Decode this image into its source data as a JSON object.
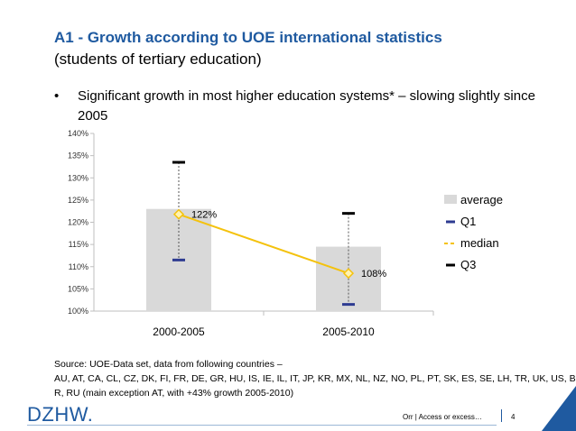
{
  "slide": {
    "title": "A1 - Growth according to UOE international statistics",
    "subtitle": "(students of tertiary education)",
    "bullet_marker": "•",
    "bullet_text": "Significant growth in most higher education systems* – slowing slightly since 2005",
    "source_line1": "Source: UOE-Data set, data from following countries –",
    "source_line2": "AU, AT, CA, CL, CZ, DK, FI, FR, DE, GR, HU, IS, IE, IL, IT, JP, KR, MX, NL, NZ, NO, PL, PT, SK, ES, SE, LH, TR, UK, US, B",
    "source_line3": "R, RU (main exception AT, with +43% growth 2005-2010)",
    "logo": "DZHW.",
    "footer_text": "Orr | Access or excess…",
    "page_number": "4"
  },
  "chart_data": {
    "type": "bar",
    "categories": [
      "2000-2005",
      "2005-2010"
    ],
    "yticks": [
      "100%",
      "105%",
      "110%",
      "115%",
      "120%",
      "125%",
      "130%",
      "135%",
      "140%"
    ],
    "ylim": [
      100,
      140
    ],
    "series": [
      {
        "name": "average",
        "values": [
          123,
          114.5
        ],
        "color": "#d9d9d9"
      },
      {
        "name": "Q1",
        "values": [
          111.5,
          101.5
        ],
        "color": "#2e3b91"
      },
      {
        "name": "median",
        "values": [
          121.8,
          108.5
        ],
        "color": "#f4c20d"
      },
      {
        "name": "Q3",
        "values": [
          133.5,
          122
        ],
        "color": "#000000"
      }
    ],
    "data_labels": [
      "122%",
      "108%"
    ]
  }
}
